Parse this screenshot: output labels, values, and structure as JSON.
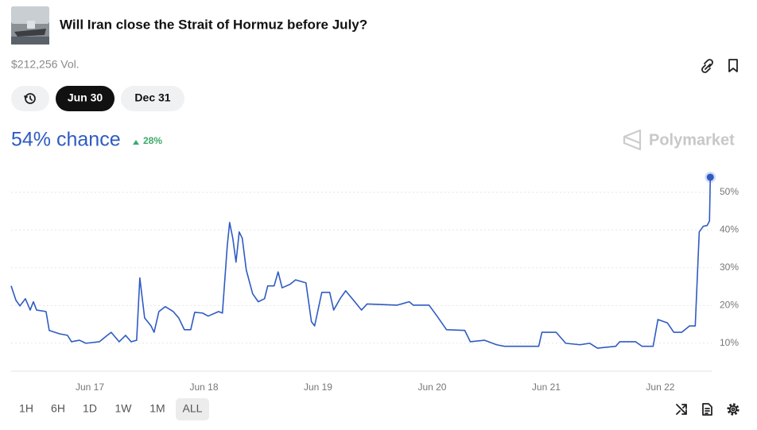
{
  "header": {
    "title": "Will Iran close the Strait of Hormuz before July?",
    "volume": "$212,256 Vol."
  },
  "dates": [
    "Jun 30",
    "Dec 31"
  ],
  "summary": {
    "chance": "54% chance",
    "change": "28%"
  },
  "brand": "Polymarket",
  "ranges": [
    "1H",
    "6H",
    "1D",
    "1W",
    "1M",
    "ALL"
  ],
  "chart_data": {
    "type": "line",
    "color": "#2f5bc2",
    "x": [
      16.31,
      16.352,
      16.387,
      16.435,
      16.477,
      16.505,
      16.533,
      16.616,
      16.644,
      16.735,
      16.804,
      16.839,
      16.909,
      16.965,
      17.083,
      17.153,
      17.187,
      17.257,
      17.313,
      17.362,
      17.41,
      17.438,
      17.48,
      17.536,
      17.563,
      17.605,
      17.661,
      17.731,
      17.779,
      17.828,
      17.884,
      17.919,
      17.988,
      18.037,
      18.128,
      18.162,
      18.204,
      18.225,
      18.253,
      18.281,
      18.309,
      18.336,
      18.371,
      18.427,
      18.476,
      18.531,
      18.559,
      18.615,
      18.65,
      18.685,
      18.754,
      18.803,
      18.894,
      18.942,
      18.97,
      19.033,
      19.102,
      19.137,
      19.193,
      19.242,
      19.311,
      19.381,
      19.43,
      19.694,
      19.799,
      19.834,
      19.973,
      20.043,
      20.126,
      20.286,
      20.335,
      20.46,
      20.565,
      20.634,
      20.934,
      20.962,
      21.087,
      21.171,
      21.296,
      21.38,
      21.449,
      21.609,
      21.644,
      21.784,
      21.839,
      21.937,
      21.979,
      22.062,
      22.118,
      22.187,
      22.257,
      22.306,
      22.341,
      22.376,
      22.41,
      22.431,
      22.438
    ],
    "values": [
      25.2,
      21.4,
      19.9,
      21.8,
      18.8,
      21,
      18.8,
      18.4,
      13.4,
      12.5,
      12.1,
      10.4,
      10.8,
      10,
      10.4,
      12.1,
      12.9,
      10.4,
      12.1,
      10.4,
      10.8,
      27.3,
      16.7,
      14.6,
      12.9,
      18.4,
      19.7,
      18.4,
      16.7,
      13.6,
      13.6,
      18.2,
      18,
      17.2,
      18.4,
      18,
      35.7,
      42,
      37.8,
      31.5,
      39.5,
      37.8,
      29.4,
      23.1,
      21,
      21.8,
      25.2,
      25.2,
      28.9,
      24.7,
      25.6,
      26.8,
      26,
      15.7,
      14.6,
      23.5,
      23.5,
      18.8,
      21.8,
      23.9,
      21.4,
      18.8,
      20.4,
      20.1,
      21,
      20.1,
      20.1,
      17.2,
      13.6,
      13.4,
      10.4,
      10.8,
      9.6,
      9.2,
      9.2,
      12.9,
      12.9,
      10,
      9.6,
      10,
      8.7,
      9.2,
      10.4,
      10.4,
      9.2,
      9.2,
      16.3,
      15.4,
      12.9,
      12.9,
      14.6,
      14.6,
      39.5,
      41,
      41.2,
      42.4,
      54
    ],
    "xlim": [
      16.31,
      22.45
    ],
    "xticks": [
      {
        "value": 17,
        "label": "Jun 17"
      },
      {
        "value": 18,
        "label": "Jun 18"
      },
      {
        "value": 19,
        "label": "Jun 19"
      },
      {
        "value": 20,
        "label": "Jun 20"
      },
      {
        "value": 21,
        "label": "Jun 21"
      },
      {
        "value": 22,
        "label": "Jun 22"
      }
    ],
    "ylim": [
      2.6,
      54.2
    ],
    "yticks": [
      {
        "value": 10,
        "label": "10%"
      },
      {
        "value": 20,
        "label": "20%"
      },
      {
        "value": 30,
        "label": "30%"
      },
      {
        "value": 40,
        "label": "40%"
      },
      {
        "value": 50,
        "label": "50%"
      }
    ],
    "grid": true
  }
}
